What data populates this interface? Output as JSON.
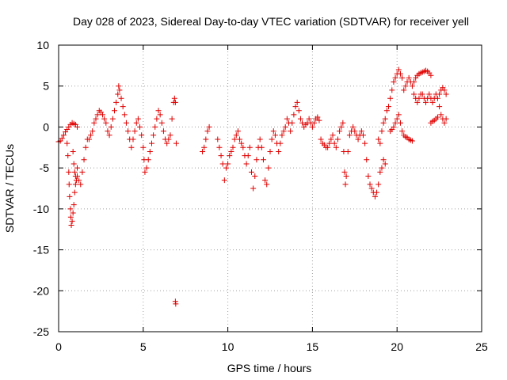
{
  "chart_data": {
    "type": "scatter",
    "title": "Day 028 of 2023, Sidereal Day-to-day VTEC variation (SDTVAR) for receiver yell",
    "xlabel": "GPS time / hours",
    "ylabel": "SDTVAR / TECUs",
    "xlim": [
      0,
      25
    ],
    "ylim": [
      -25,
      10
    ],
    "xticks": [
      0,
      5,
      10,
      15,
      20,
      25
    ],
    "yticks": [
      -25,
      -20,
      -15,
      -10,
      -5,
      0,
      5,
      10
    ],
    "xtick_labels": [
      "0",
      "5",
      "10",
      "15",
      "20",
      "25"
    ],
    "ytick_labels": [
      "-25",
      "-20",
      "-15",
      "-10",
      "-5",
      "0",
      "5",
      "10"
    ],
    "grid": true,
    "marker": "+",
    "color": "#e00000",
    "series": [
      {
        "name": "SDTVAR",
        "points": [
          [
            0.0,
            -1.8
          ],
          [
            0.1,
            -1.7
          ],
          [
            0.2,
            -1.4
          ],
          [
            0.3,
            -1.0
          ],
          [
            0.4,
            -0.6
          ],
          [
            0.5,
            -0.3
          ],
          [
            0.6,
            0.0
          ],
          [
            0.7,
            0.3
          ],
          [
            0.8,
            0.5
          ],
          [
            0.9,
            0.4
          ],
          [
            1.0,
            0.3
          ],
          [
            1.1,
            0.0
          ],
          [
            0.5,
            -2.0
          ],
          [
            0.55,
            -3.5
          ],
          [
            0.6,
            -5.5
          ],
          [
            0.62,
            -7.0
          ],
          [
            0.65,
            -8.5
          ],
          [
            0.7,
            -10.0
          ],
          [
            0.72,
            -11.0
          ],
          [
            0.75,
            -12.0
          ],
          [
            0.8,
            -11.5
          ],
          [
            0.85,
            -10.5
          ],
          [
            0.9,
            -9.5
          ],
          [
            0.95,
            -8.0
          ],
          [
            1.0,
            -7.0
          ],
          [
            1.05,
            -6.5
          ],
          [
            1.1,
            -6.0
          ],
          [
            0.85,
            -3.0
          ],
          [
            0.9,
            -4.5
          ],
          [
            0.95,
            -5.5
          ],
          [
            1.0,
            -6.0
          ],
          [
            1.1,
            -5.0
          ],
          [
            1.2,
            -6.5
          ],
          [
            1.3,
            -7.0
          ],
          [
            1.4,
            -5.5
          ],
          [
            1.5,
            -4.0
          ],
          [
            1.6,
            -2.5
          ],
          [
            1.7,
            -1.5
          ],
          [
            1.8,
            -1.5
          ],
          [
            1.9,
            -1.0
          ],
          [
            2.0,
            -0.5
          ],
          [
            2.1,
            0.5
          ],
          [
            2.2,
            1.0
          ],
          [
            2.3,
            1.5
          ],
          [
            2.4,
            2.0
          ],
          [
            2.5,
            1.8
          ],
          [
            2.6,
            1.5
          ],
          [
            2.7,
            1.0
          ],
          [
            2.8,
            0.5
          ],
          [
            2.9,
            -0.5
          ],
          [
            3.0,
            -1.0
          ],
          [
            3.1,
            0.0
          ],
          [
            3.2,
            1.0
          ],
          [
            3.3,
            2.0
          ],
          [
            3.4,
            3.0
          ],
          [
            3.5,
            4.0
          ],
          [
            3.55,
            5.0
          ],
          [
            3.6,
            4.5
          ],
          [
            3.7,
            3.5
          ],
          [
            3.8,
            2.5
          ],
          [
            3.9,
            1.5
          ],
          [
            4.0,
            0.5
          ],
          [
            4.1,
            -0.5
          ],
          [
            4.2,
            -1.5
          ],
          [
            4.3,
            -2.5
          ],
          [
            4.4,
            -1.5
          ],
          [
            4.5,
            -0.5
          ],
          [
            4.6,
            0.5
          ],
          [
            4.7,
            1.0
          ],
          [
            4.8,
            0.0
          ],
          [
            4.9,
            -1.0
          ],
          [
            5.0,
            -2.5
          ],
          [
            5.05,
            -4.0
          ],
          [
            5.1,
            -5.5
          ],
          [
            5.2,
            -5.0
          ],
          [
            5.3,
            -4.0
          ],
          [
            5.4,
            -3.0
          ],
          [
            5.5,
            -2.0
          ],
          [
            5.6,
            -1.0
          ],
          [
            5.7,
            0.0
          ],
          [
            5.8,
            1.0
          ],
          [
            5.9,
            2.0
          ],
          [
            6.0,
            1.5
          ],
          [
            6.1,
            0.5
          ],
          [
            6.2,
            -0.5
          ],
          [
            6.3,
            -1.5
          ],
          [
            6.4,
            -2.0
          ],
          [
            6.5,
            -1.5
          ],
          [
            6.6,
            -1.0
          ],
          [
            6.7,
            1.0
          ],
          [
            6.8,
            3.0
          ],
          [
            6.85,
            3.5
          ],
          [
            6.9,
            3.0
          ],
          [
            6.95,
            -2.0
          ],
          [
            6.9,
            -21.3
          ],
          [
            6.92,
            -21.6
          ],
          [
            8.5,
            -3.0
          ],
          [
            8.6,
            -2.5
          ],
          [
            8.7,
            -1.5
          ],
          [
            8.8,
            -0.5
          ],
          [
            8.9,
            0.0
          ],
          [
            9.4,
            -1.5
          ],
          [
            9.5,
            -2.5
          ],
          [
            9.6,
            -3.5
          ],
          [
            9.7,
            -4.5
          ],
          [
            9.8,
            -6.5
          ],
          [
            9.9,
            -5.0
          ],
          [
            10.0,
            -4.5
          ],
          [
            10.1,
            -3.5
          ],
          [
            10.2,
            -3.0
          ],
          [
            10.3,
            -2.5
          ],
          [
            10.4,
            -1.5
          ],
          [
            10.5,
            -1.0
          ],
          [
            10.6,
            -0.5
          ],
          [
            10.7,
            -1.5
          ],
          [
            10.8,
            -2.0
          ],
          [
            10.9,
            -2.5
          ],
          [
            11.0,
            -3.5
          ],
          [
            11.1,
            -4.5
          ],
          [
            11.2,
            -3.5
          ],
          [
            11.3,
            -2.5
          ],
          [
            11.4,
            -5.5
          ],
          [
            11.5,
            -7.5
          ],
          [
            11.6,
            -6.0
          ],
          [
            11.7,
            -4.0
          ],
          [
            11.8,
            -2.5
          ],
          [
            11.9,
            -1.5
          ],
          [
            12.0,
            -2.5
          ],
          [
            12.1,
            -4.0
          ],
          [
            12.2,
            -6.5
          ],
          [
            12.3,
            -7.0
          ],
          [
            12.4,
            -5.0
          ],
          [
            12.5,
            -3.0
          ],
          [
            12.6,
            -1.5
          ],
          [
            12.7,
            -0.5
          ],
          [
            12.8,
            -1.0
          ],
          [
            12.9,
            -2.0
          ],
          [
            13.0,
            -3.0
          ],
          [
            13.1,
            -2.0
          ],
          [
            13.2,
            -1.0
          ],
          [
            13.3,
            -0.5
          ],
          [
            13.4,
            0.0
          ],
          [
            13.5,
            1.0
          ],
          [
            13.6,
            0.5
          ],
          [
            13.7,
            -0.5
          ],
          [
            13.8,
            0.5
          ],
          [
            13.9,
            1.5
          ],
          [
            14.0,
            2.5
          ],
          [
            14.1,
            3.0
          ],
          [
            14.2,
            2.0
          ],
          [
            14.3,
            1.0
          ],
          [
            14.4,
            0.5
          ],
          [
            14.5,
            0.0
          ],
          [
            14.6,
            0.3
          ],
          [
            14.7,
            0.5
          ],
          [
            14.8,
            1.0
          ],
          [
            14.9,
            0.5
          ],
          [
            15.0,
            0.0
          ],
          [
            15.1,
            0.5
          ],
          [
            15.2,
            1.0
          ],
          [
            15.3,
            1.2
          ],
          [
            15.4,
            0.8
          ],
          [
            15.5,
            -1.5
          ],
          [
            15.6,
            -2.0
          ],
          [
            15.7,
            -2.2
          ],
          [
            15.8,
            -2.5
          ],
          [
            15.9,
            -2.5
          ],
          [
            16.0,
            -2.0
          ],
          [
            16.1,
            -1.5
          ],
          [
            16.2,
            -1.0
          ],
          [
            16.3,
            -2.0
          ],
          [
            16.4,
            -2.5
          ],
          [
            16.5,
            -1.5
          ],
          [
            16.6,
            -0.5
          ],
          [
            16.7,
            0.0
          ],
          [
            16.8,
            0.5
          ],
          [
            16.85,
            -3.0
          ],
          [
            16.9,
            -5.5
          ],
          [
            16.95,
            -7.0
          ],
          [
            17.0,
            -6.0
          ],
          [
            17.1,
            -3.0
          ],
          [
            17.2,
            -1.0
          ],
          [
            17.3,
            -0.5
          ],
          [
            17.4,
            0.0
          ],
          [
            17.5,
            -0.5
          ],
          [
            17.6,
            -1.0
          ],
          [
            17.7,
            -1.5
          ],
          [
            17.8,
            -1.0
          ],
          [
            17.9,
            -0.5
          ],
          [
            18.0,
            -1.0
          ],
          [
            18.1,
            -2.0
          ],
          [
            18.2,
            -4.0
          ],
          [
            18.3,
            -6.0
          ],
          [
            18.4,
            -7.0
          ],
          [
            18.5,
            -7.5
          ],
          [
            18.6,
            -8.0
          ],
          [
            18.7,
            -8.5
          ],
          [
            18.8,
            -8.0
          ],
          [
            18.9,
            -7.0
          ],
          [
            19.0,
            -5.5
          ],
          [
            19.1,
            -5.0
          ],
          [
            19.2,
            -4.0
          ],
          [
            19.3,
            -4.5
          ],
          [
            18.9,
            -1.5
          ],
          [
            19.0,
            -2.0
          ],
          [
            19.1,
            -0.5
          ],
          [
            19.2,
            0.5
          ],
          [
            19.3,
            1.0
          ],
          [
            19.4,
            2.0
          ],
          [
            19.5,
            2.5
          ],
          [
            19.6,
            3.5
          ],
          [
            19.7,
            4.5
          ],
          [
            19.8,
            5.5
          ],
          [
            19.9,
            6.0
          ],
          [
            20.0,
            6.5
          ],
          [
            20.1,
            7.0
          ],
          [
            20.2,
            6.5
          ],
          [
            20.3,
            6.0
          ],
          [
            19.6,
            -0.5
          ],
          [
            19.7,
            -0.3
          ],
          [
            19.8,
            0.0
          ],
          [
            19.9,
            0.5
          ],
          [
            20.0,
            1.0
          ],
          [
            20.1,
            1.5
          ],
          [
            20.2,
            0.5
          ],
          [
            20.3,
            -0.5
          ],
          [
            20.4,
            -1.0
          ],
          [
            20.5,
            -1.2
          ],
          [
            20.6,
            -1.3
          ],
          [
            20.7,
            -1.5
          ],
          [
            20.8,
            -1.6
          ],
          [
            20.9,
            -1.7
          ],
          [
            20.4,
            4.5
          ],
          [
            20.5,
            5.0
          ],
          [
            20.6,
            5.5
          ],
          [
            20.7,
            6.0
          ],
          [
            20.8,
            5.5
          ],
          [
            20.9,
            5.0
          ],
          [
            21.0,
            5.5
          ],
          [
            21.1,
            6.0
          ],
          [
            21.2,
            6.3
          ],
          [
            21.3,
            6.5
          ],
          [
            21.4,
            6.6
          ],
          [
            21.5,
            6.7
          ],
          [
            21.6,
            6.8
          ],
          [
            21.7,
            6.9
          ],
          [
            21.8,
            6.8
          ],
          [
            21.9,
            6.6
          ],
          [
            22.0,
            6.3
          ],
          [
            21.0,
            4.0
          ],
          [
            21.1,
            3.5
          ],
          [
            21.2,
            3.0
          ],
          [
            21.3,
            3.5
          ],
          [
            21.4,
            4.0
          ],
          [
            21.5,
            4.0
          ],
          [
            21.6,
            3.5
          ],
          [
            21.7,
            3.0
          ],
          [
            21.8,
            3.5
          ],
          [
            21.9,
            4.0
          ],
          [
            22.0,
            3.5
          ],
          [
            22.1,
            3.0
          ],
          [
            22.2,
            3.5
          ],
          [
            22.3,
            4.0
          ],
          [
            22.4,
            3.5
          ],
          [
            22.5,
            2.5
          ],
          [
            22.6,
            1.5
          ],
          [
            22.7,
            1.0
          ],
          [
            22.8,
            0.5
          ],
          [
            22.9,
            1.0
          ],
          [
            22.5,
            4.0
          ],
          [
            22.6,
            4.5
          ],
          [
            22.7,
            4.8
          ],
          [
            22.8,
            4.5
          ],
          [
            22.9,
            4.0
          ],
          [
            22.0,
            0.5
          ],
          [
            22.1,
            0.7
          ],
          [
            22.2,
            0.8
          ],
          [
            22.3,
            1.0
          ],
          [
            22.4,
            1.2
          ]
        ]
      }
    ]
  }
}
